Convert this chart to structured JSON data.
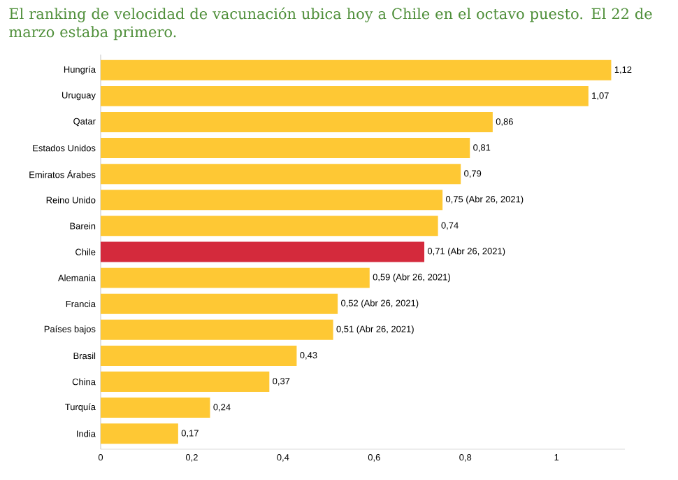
{
  "chart_data": {
    "type": "bar",
    "orientation": "horizontal",
    "title": "El ranking de velocidad de vacunación ubica hoy a Chile en el octavo puesto. El 22 de marzo estaba primero.",
    "categories": [
      "Hungría",
      "Uruguay",
      "Qatar",
      "Estados Unidos",
      "Emiratos Árabes",
      "Reino Unido",
      "Barein",
      "Chile",
      "Alemania",
      "Francia",
      "Países bajos",
      "Brasil",
      "China",
      "Turquía",
      "India"
    ],
    "values": [
      1.12,
      1.07,
      0.86,
      0.81,
      0.79,
      0.75,
      0.74,
      0.71,
      0.59,
      0.52,
      0.51,
      0.43,
      0.37,
      0.24,
      0.17
    ],
    "colors": [
      "#fec834",
      "#fec834",
      "#fec834",
      "#fec834",
      "#fec834",
      "#fec834",
      "#fec834",
      "#d42a3c",
      "#fec834",
      "#fec834",
      "#fec834",
      "#fec834",
      "#fec834",
      "#fec834",
      "#fec834"
    ],
    "value_labels": [
      "1,12",
      "1,07",
      "0,86",
      "0,81",
      "0,79",
      "0,75 (Abr 26, 2021)",
      "0,74",
      "0,71 (Abr 26, 2021)",
      "0,59 (Abr 26, 2021)",
      "0,52 (Abr 26, 2021)",
      "0,51 (Abr 26, 2021)",
      "0,43",
      "0,37",
      "0,24",
      "0,17"
    ],
    "xlim": [
      0,
      1.15
    ],
    "xticks": [
      {
        "value": 0,
        "label": "0"
      },
      {
        "value": 0.2,
        "label": "0,2"
      },
      {
        "value": 0.4,
        "label": "0,4"
      },
      {
        "value": 0.6,
        "label": "0,6"
      },
      {
        "value": 0.8,
        "label": "0,8"
      },
      {
        "value": 1,
        "label": "1"
      }
    ]
  }
}
